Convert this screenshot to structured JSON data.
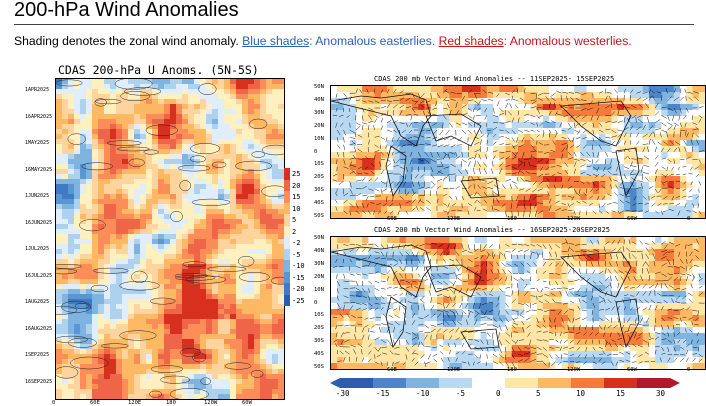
{
  "page": {
    "title": "200-hPa Wind Anomalies",
    "caption": {
      "intro": "Shading denotes the zonal wind anomaly. ",
      "blue_link": "Blue shades",
      "blue_text": ": Anomalous easterlies. ",
      "red_link": "Red shades",
      "red_text": ": Anomalous westerlies."
    }
  },
  "hovmoller": {
    "title": "CDAS 200-hPa U Anoms. (5N-5S)",
    "date_labels": [
      "1APR2025",
      "16APR2025",
      "1MAY2025",
      "16MAY2025",
      "1JUN2025",
      "16JUN2025",
      "1JUL2025",
      "16JUL2025",
      "1AUG2025",
      "16AUG2025",
      "1SEP2025",
      "16SEP2025"
    ],
    "lon_labels": [
      "0",
      "60E",
      "120E",
      "180",
      "120W",
      "60W"
    ],
    "colorbar_labels": [
      "25",
      "20",
      "15",
      "10",
      "5",
      "2",
      "-2",
      "-5",
      "-10",
      "-15",
      "-20",
      "-25"
    ],
    "colors": [
      "#d7301f",
      "#ef6548",
      "#fc8d59",
      "#fdb863",
      "#fdd49e",
      "#fff0c0",
      "#dfeefa",
      "#aed1ee",
      "#7fb3e0",
      "#5a96d2",
      "#3f7bc4",
      "#2b5fae"
    ]
  },
  "maps": [
    {
      "title": "CDAS 200 mb Vector Wind Anomalies -- 11SEP2025- 15SEP2025"
    },
    {
      "title": "CDAS 200 mb Vector Wind Anomalies -- 16SEP2025-20SEP2025"
    }
  ],
  "map_axes": {
    "lat_labels": [
      "50N",
      "40N",
      "30N",
      "20N",
      "10N",
      "0",
      "10S",
      "20S",
      "30S",
      "40S",
      "50S"
    ],
    "lon_labels": [
      "60E",
      "120E",
      "180",
      "120W",
      "60W",
      "0"
    ]
  },
  "bottom_colorbar": {
    "labels": [
      "-30",
      "-15",
      "-10",
      "-5",
      "0",
      "5",
      "10",
      "15",
      "30"
    ],
    "colors": [
      "#2b5fae",
      "#4d86c8",
      "#7fb3e0",
      "#b9d8f1",
      "#ffffff",
      "#fde6a6",
      "#fdb863",
      "#f47b3c",
      "#d7301f",
      "#b2182b"
    ]
  }
}
